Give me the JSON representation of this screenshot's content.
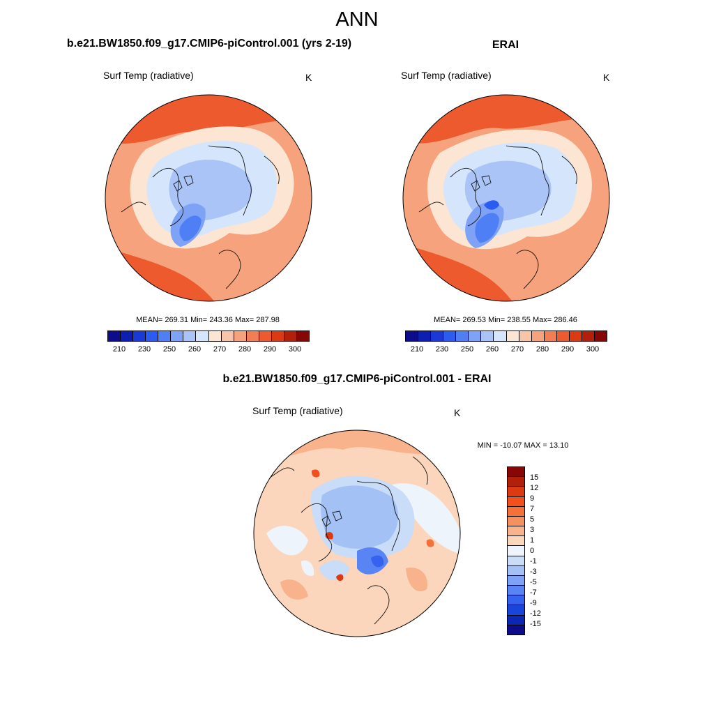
{
  "figure": {
    "title": "ANN"
  },
  "top_left": {
    "title": "b.e21.BW1850.f09_g17.CMIP6-piControl.001 (yrs 2-19)",
    "variable": "Surf Temp (radiative)",
    "units": "K",
    "stats": "MEAN= 269.31  Min= 243.36  Max= 287.98"
  },
  "top_right": {
    "title": "ERAI",
    "variable": "Surf Temp (radiative)",
    "units": "K",
    "stats": "MEAN= 269.53  Min= 238.55  Max= 286.46"
  },
  "bottom": {
    "title": "b.e21.BW1850.f09_g17.CMIP6-piControl.001 - ERAI",
    "variable": "Surf Temp (radiative)",
    "units": "K",
    "stats": "MIN = -10.07 MAX =  13.10"
  },
  "abs_colorbar": {
    "colors": [
      "#0c0c8c",
      "#0d1fb1",
      "#1a3ad8",
      "#2b5cf0",
      "#4f7ff5",
      "#7ea2f5",
      "#aac4f7",
      "#d5e5fb",
      "#fde5d3",
      "#f9c5a9",
      "#f6a27c",
      "#f27e53",
      "#ec5a2e",
      "#dc3a12",
      "#b3200a",
      "#860705"
    ],
    "ticks": [
      "210",
      "230",
      "250",
      "260",
      "270",
      "280",
      "290",
      "300"
    ]
  },
  "diff_colorbar": {
    "colors": [
      "#860705",
      "#b3200a",
      "#dc3a12",
      "#f24f1c",
      "#f6703a",
      "#f6905e",
      "#f8b28c",
      "#fbd6bc",
      "#eef4fc",
      "#c9dcf8",
      "#a3c1f5",
      "#7ea2f5",
      "#5884f4",
      "#3563ef",
      "#1a45da",
      "#0d27b5",
      "#0c0c8c"
    ],
    "ticks": [
      "15",
      "12",
      "9",
      "7",
      "5",
      "3",
      "1",
      "0",
      "-1",
      "-3",
      "-5",
      "-7",
      "-9",
      "-12",
      "-15"
    ]
  }
}
